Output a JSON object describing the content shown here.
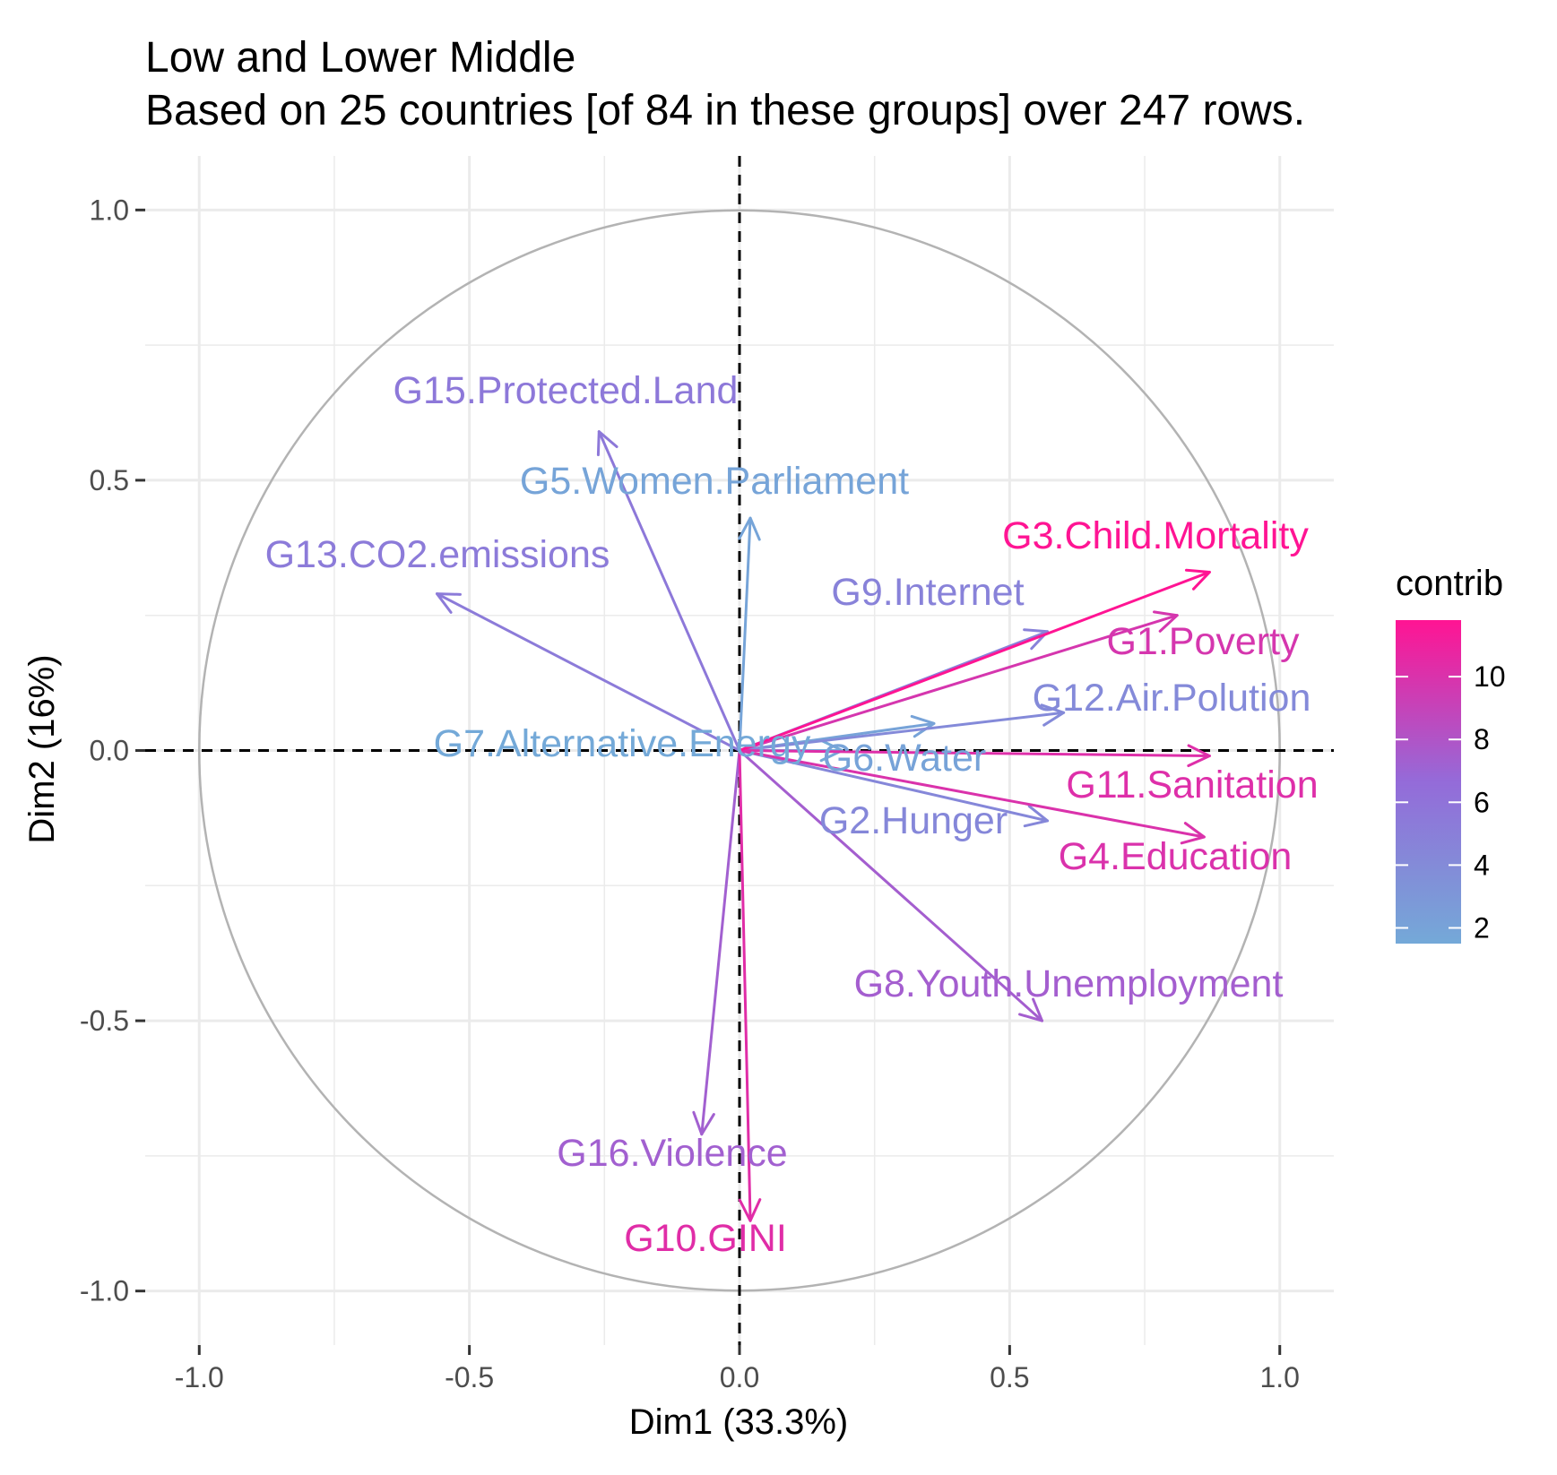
{
  "chart_data": {
    "type": "scatter",
    "subtype": "pca-variable-correlation-circle",
    "title": "Low and Lower Middle",
    "subtitle": "Based on 25 countries [of 84 in these groups] over 247 rows.",
    "xlabel": "Dim1 (33.3%)",
    "ylabel": "Dim2 (16%)",
    "xlim": [
      -1.1,
      1.1
    ],
    "ylim": [
      -1.1,
      1.1
    ],
    "xticks": [
      -1.0,
      -0.5,
      0.0,
      0.5,
      1.0
    ],
    "yticks": [
      -1.0,
      -0.5,
      0.0,
      0.5,
      1.0
    ],
    "xtick_labels": [
      "-1.0",
      "-0.5",
      "0.0",
      "0.5",
      "1.0"
    ],
    "ytick_labels": [
      "-1.0",
      "-0.5",
      "0.0",
      "0.5",
      "1.0"
    ],
    "grid": true,
    "unit_circle": true,
    "legend": {
      "title": "contrib",
      "placement": "right",
      "range": [
        1.5,
        11.8
      ],
      "ticks": [
        2,
        4,
        6,
        8,
        10
      ],
      "tick_labels": [
        "2",
        "4",
        "6",
        "8",
        "10"
      ],
      "color_low": "#74a9d8",
      "color_high": "#ff1493"
    },
    "variables": [
      {
        "name": "G1.Poverty",
        "x": 0.81,
        "y": 0.25,
        "contrib": 9.8
      },
      {
        "name": "G2.Hunger",
        "x": 0.57,
        "y": -0.13,
        "contrib": 4.3
      },
      {
        "name": "G3.Child.Mortality",
        "x": 0.87,
        "y": 0.33,
        "contrib": 11.8
      },
      {
        "name": "G4.Education",
        "x": 0.86,
        "y": -0.16,
        "contrib": 10.0
      },
      {
        "name": "G5.Women.Parliament",
        "x": 0.02,
        "y": 0.43,
        "contrib": 1.9
      },
      {
        "name": "G6.Water",
        "x": 0.36,
        "y": 0.05,
        "contrib": 2.0
      },
      {
        "name": "G7.Alternative.Energy",
        "x": 0.19,
        "y": 0.0,
        "contrib": 1.5
      },
      {
        "name": "G8.Youth.Unemployment",
        "x": 0.56,
        "y": -0.5,
        "contrib": 7.4
      },
      {
        "name": "G9.Internet",
        "x": 0.57,
        "y": 0.22,
        "contrib": 4.7
      },
      {
        "name": "G10.GINI",
        "x": 0.02,
        "y": -0.87,
        "contrib": 10.3
      },
      {
        "name": "G11.Sanitation",
        "x": 0.87,
        "y": -0.01,
        "contrib": 10.2
      },
      {
        "name": "G12.Air.Polution",
        "x": 0.6,
        "y": 0.07,
        "contrib": 4.1
      },
      {
        "name": "G13.CO2.emissions",
        "x": -0.56,
        "y": 0.29,
        "contrib": 5.3
      },
      {
        "name": "G15.Protected.Land",
        "x": -0.26,
        "y": 0.59,
        "contrib": 5.6
      },
      {
        "name": "G16.Violence",
        "x": -0.07,
        "y": -0.71,
        "contrib": 7.3
      }
    ]
  }
}
